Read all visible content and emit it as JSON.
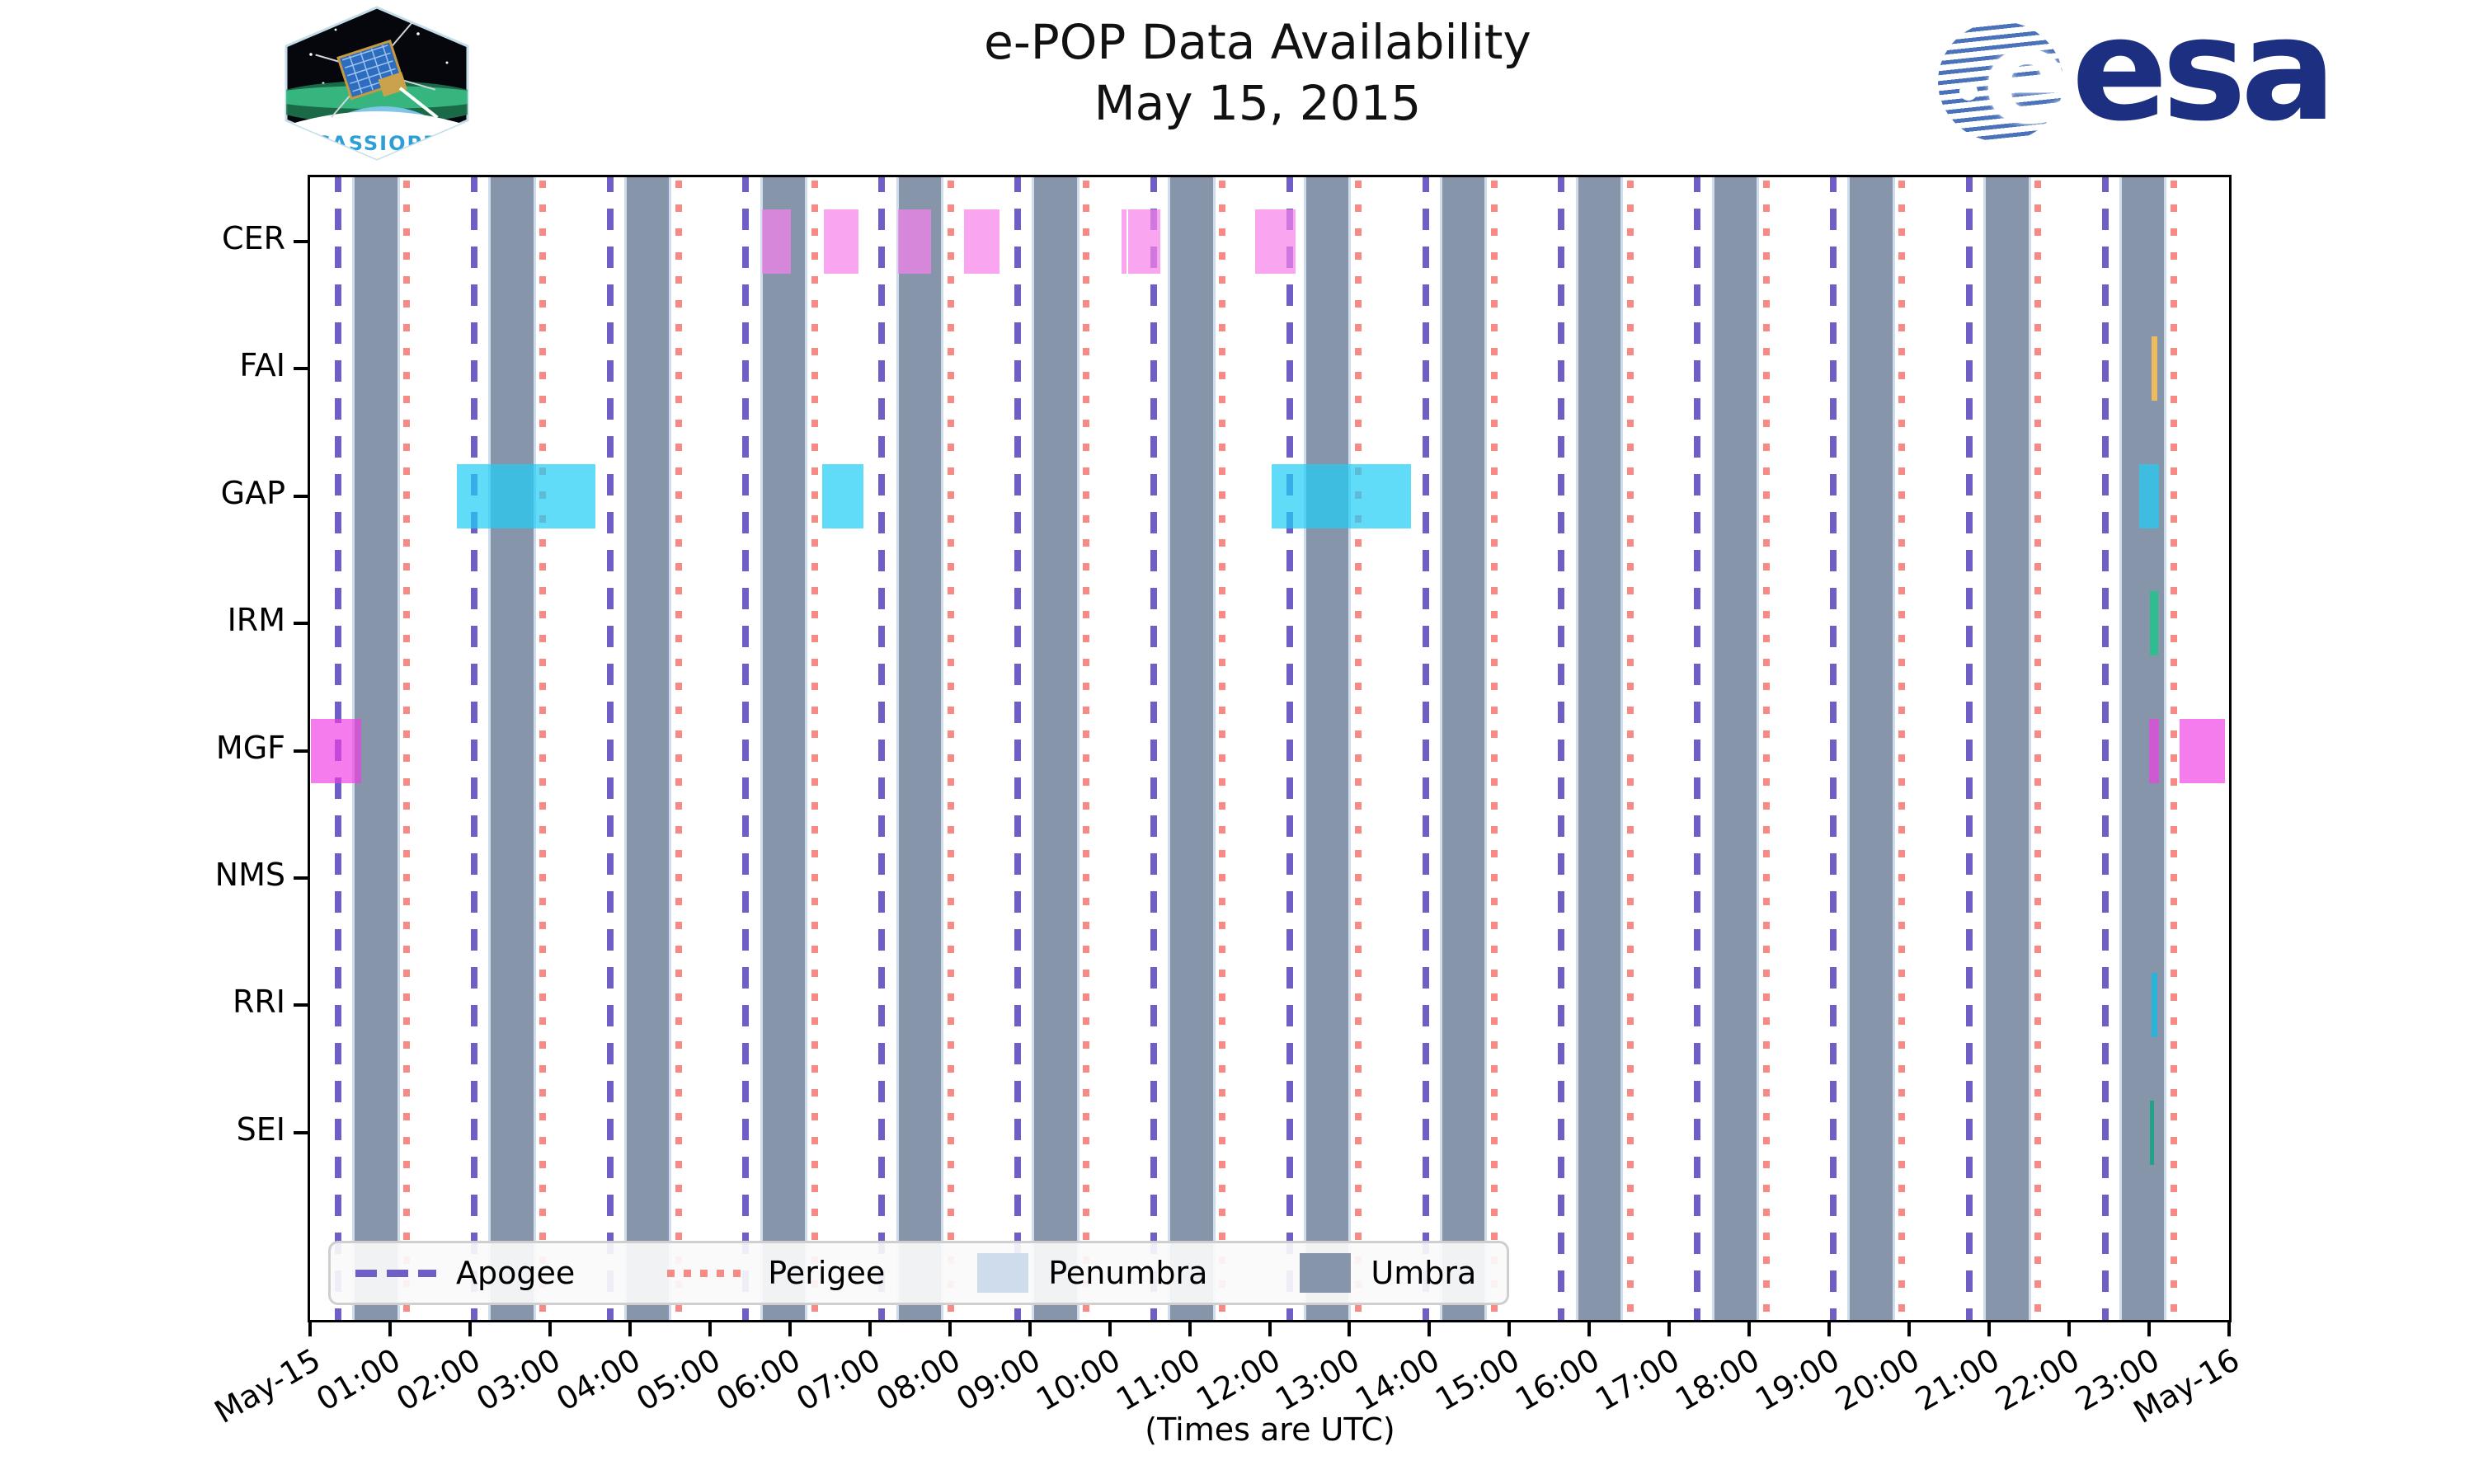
{
  "figure": {
    "title_line1": "e-POP Data Availability",
    "title_line2": "May 15, 2015",
    "xlabel": "(Times are UTC)",
    "cassiope_label": "CASSIOPE",
    "esa_globe_letter": "e",
    "esa_wordmark": "esa"
  },
  "chart_data": {
    "type": "timeline",
    "title": "e-POP Data Availability",
    "subtitle": "May 15, 2015",
    "x_axis": {
      "label": "(Times are UTC)",
      "span_hours": 24,
      "tick_labels": [
        "May-15",
        "01:00",
        "02:00",
        "03:00",
        "04:00",
        "05:00",
        "06:00",
        "07:00",
        "08:00",
        "09:00",
        "10:00",
        "11:00",
        "12:00",
        "13:00",
        "14:00",
        "15:00",
        "16:00",
        "17:00",
        "18:00",
        "19:00",
        "20:00",
        "21:00",
        "22:00",
        "23:00",
        "May-16"
      ]
    },
    "y_axis": {
      "rows": [
        "CER",
        "FAI",
        "GAP",
        "IRM",
        "MGF",
        "NMS",
        "RRI",
        "SEI"
      ]
    },
    "legend": {
      "items": [
        {
          "label": "Apogee",
          "style": "dashed-line",
          "color": "#6e5ec6"
        },
        {
          "label": "Perigee",
          "style": "dotted-line",
          "color": "#f78a85"
        },
        {
          "label": "Penumbra",
          "style": "patch",
          "color": "#cfdcec"
        },
        {
          "label": "Umbra",
          "style": "patch",
          "color": "#8795ab"
        }
      ]
    },
    "orbit_events": {
      "apogee_hours_utc": [
        0.35,
        2.05,
        3.75,
        5.45,
        7.15,
        8.85,
        10.55,
        12.25,
        13.95,
        15.65,
        17.35,
        19.05,
        20.75,
        22.45
      ],
      "perigee_hours_utc": [
        1.21,
        2.91,
        4.61,
        6.31,
        8.01,
        9.71,
        11.41,
        13.11,
        14.81,
        16.51,
        18.21,
        19.91,
        21.61,
        23.31
      ],
      "umbra_intervals_utc": [
        [
          0.56,
          1.09
        ],
        [
          2.26,
          2.79
        ],
        [
          3.96,
          4.49
        ],
        [
          5.66,
          6.19
        ],
        [
          7.36,
          7.89
        ],
        [
          9.06,
          9.59
        ],
        [
          10.76,
          11.29
        ],
        [
          12.46,
          12.99
        ],
        [
          14.16,
          14.69
        ],
        [
          15.86,
          16.39
        ],
        [
          17.56,
          18.09
        ],
        [
          19.26,
          19.79
        ],
        [
          20.96,
          21.49
        ],
        [
          22.66,
          23.19
        ]
      ]
    },
    "availability_intervals_utc": {
      "CER": [
        [
          5.65,
          6.01
        ],
        [
          6.43,
          6.86
        ],
        [
          7.35,
          7.77
        ],
        [
          8.18,
          8.62
        ],
        [
          10.15,
          10.21
        ],
        [
          10.23,
          10.63
        ],
        [
          11.82,
          12.32
        ]
      ],
      "FAI": [
        [
          23.03,
          23.1
        ]
      ],
      "GAP": [
        [
          1.84,
          3.57
        ],
        [
          6.4,
          6.92
        ],
        [
          12.03,
          13.77
        ],
        [
          22.88,
          23.12
        ]
      ],
      "IRM": [
        [
          23.01,
          23.11
        ]
      ],
      "MGF": [
        [
          0.01,
          0.64
        ],
        [
          23.0,
          23.12
        ],
        [
          23.38,
          23.95
        ]
      ],
      "NMS": [],
      "RRI": [
        [
          23.03,
          23.1
        ]
      ],
      "SEI": [
        [
          23.01,
          23.06
        ]
      ]
    },
    "row_colors": {
      "CER": "rgba(246,130,234,0.72)",
      "FAI": "#edba5e",
      "GAP": "rgba(34,205,245,0.72)",
      "IRM": "#2ebd8e",
      "MGF": "rgba(240,62,228,0.68)",
      "NMS": "rgba(0,0,0,0)",
      "RRI": "#29b3d8",
      "SEI": "#21a186"
    },
    "band_colors": {
      "umbra": "#8795ab",
      "penumbra": "#cfdcec",
      "apogee": "#6e5ec6",
      "perigee": "#f78a85"
    }
  }
}
